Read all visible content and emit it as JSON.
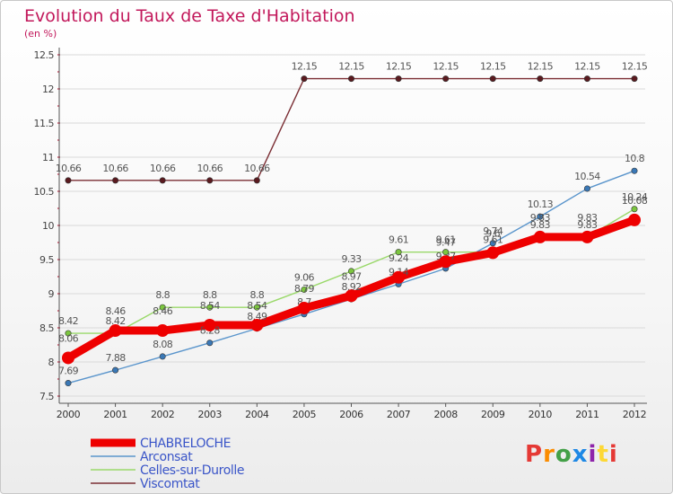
{
  "header": {
    "title": "Evolution du Taux de Taxe d'Habitation",
    "unit": "(en %)"
  },
  "logo": {
    "text": "Proxiti",
    "letters": [
      {
        "ch": "P",
        "color": "#e53935"
      },
      {
        "ch": "r",
        "color": "#fb8c00"
      },
      {
        "ch": "o",
        "color": "#43a047"
      },
      {
        "ch": "x",
        "color": "#1e88e5"
      },
      {
        "ch": "i",
        "color": "#8e24aa"
      },
      {
        "ch": "t",
        "color": "#fdd835"
      },
      {
        "ch": "i",
        "color": "#e53935"
      }
    ]
  },
  "chart_data": {
    "type": "line",
    "title": "Evolution du Taux de Taxe d'Habitation",
    "ylabel": "(en %)",
    "xlabel": "",
    "categories": [
      "2000",
      "2001",
      "2002",
      "2003",
      "2004",
      "2005",
      "2006",
      "2007",
      "2008",
      "2009",
      "2010",
      "2011",
      "2012"
    ],
    "ylim": [
      7.5,
      12.5
    ],
    "yticks": [
      7.5,
      8,
      8.5,
      9,
      9.5,
      10,
      10.5,
      11,
      11.5,
      12,
      12.5
    ],
    "ytick_labels": [
      "7.5",
      "8",
      "8.5",
      "9",
      "9.5",
      "10",
      "10.5",
      "11",
      "11.5",
      "12",
      "12.5"
    ],
    "grid": true,
    "legend_position": "bottom-left",
    "series": [
      {
        "name": "Viscomtat",
        "color": "#7b2e34",
        "marker_color": "#5a1a1f",
        "values": [
          10.66,
          10.66,
          10.66,
          10.66,
          10.66,
          12.15,
          12.15,
          12.15,
          12.15,
          12.15,
          12.15,
          12.15,
          12.15
        ]
      },
      {
        "name": "Arconsat",
        "color": "#5a95cc",
        "marker_color": "#3a78b6",
        "values": [
          7.69,
          7.88,
          8.08,
          8.28,
          8.49,
          8.7,
          8.92,
          9.14,
          9.37,
          9.74,
          10.13,
          10.54,
          10.8
        ]
      },
      {
        "name": "Celles-sur-Durolle",
        "color": "#9ad96a",
        "marker_color": "#7cc63f",
        "values": [
          8.42,
          8.42,
          8.8,
          8.8,
          8.8,
          9.06,
          9.33,
          9.61,
          9.61,
          9.61,
          9.83,
          9.83,
          10.24
        ]
      },
      {
        "name": "CHABRELOCHE",
        "color": "#ee0000",
        "marker_color": "#ee0000",
        "values": [
          8.06,
          8.46,
          8.46,
          8.54,
          8.54,
          8.79,
          8.97,
          9.24,
          9.47,
          9.6,
          9.83,
          9.83,
          10.08
        ]
      }
    ],
    "legend_order": [
      "CHABRELOCHE",
      "Arconsat",
      "Celles-sur-Durolle",
      "Viscomtat"
    ]
  }
}
